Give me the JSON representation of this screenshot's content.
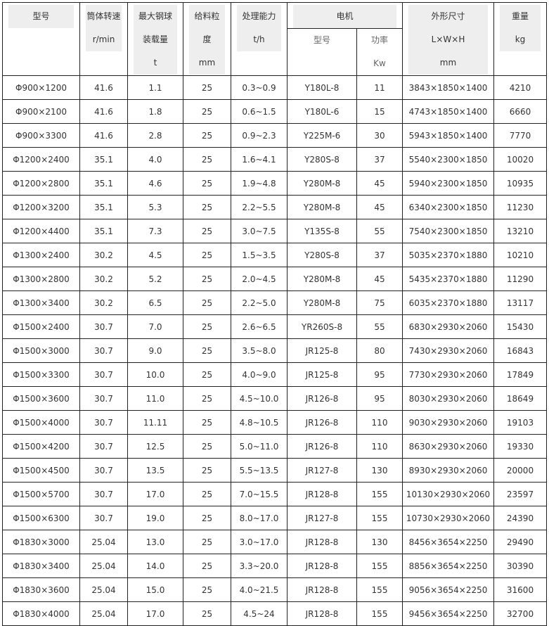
{
  "header": {
    "model": "型号",
    "speed": [
      "筒体转速",
      "r/min"
    ],
    "ball": [
      "最大钢球",
      "装载量",
      "t"
    ],
    "feed": [
      "给料粒",
      "度",
      "mm"
    ],
    "capacity": [
      "处理能力",
      "t/h"
    ],
    "motor": "电机",
    "motor_model": "型号",
    "motor_power": [
      "功率",
      "Kw"
    ],
    "dims": [
      "外形尺寸",
      "L×W×H",
      "mm"
    ],
    "weight": [
      "重量",
      "kg"
    ]
  },
  "rows": [
    [
      "Φ900×1200",
      "41.6",
      "1.1",
      "25",
      "0.3~0.9",
      "Y180L-8",
      "11",
      "3843×1850×1400",
      "4210"
    ],
    [
      "Φ900×2100",
      "41.6",
      "1.8",
      "25",
      "0.6~1.5",
      "Y180L-6",
      "15",
      "4743×1850×1400",
      "6660"
    ],
    [
      "Φ900×3300",
      "41.6",
      "2.8",
      "25",
      "0.9~2.3",
      "Y225M-6",
      "30",
      "5943×1850×1400",
      "7770"
    ],
    [
      "Φ1200×2400",
      "35.1",
      "4.0",
      "25",
      "1.6~4.1",
      "Y280S-8",
      "37",
      "5540×2300×1850",
      "10020"
    ],
    [
      "Φ1200×2800",
      "35.1",
      "4.6",
      "25",
      "1.9~4.8",
      "Y280M-8",
      "45",
      "5940×2300×1850",
      "10935"
    ],
    [
      "Φ1200×3200",
      "35.1",
      "5.3",
      "25",
      "2.2~5.5",
      "Y280M-8",
      "45",
      "6340×2300×1850",
      "11230"
    ],
    [
      "Φ1200×4400",
      "35.1",
      "7.3",
      "25",
      "3.0~7.5",
      "Y135S-8",
      "55",
      "7540×2300×1850",
      "13210"
    ],
    [
      "Φ1300×2400",
      "30.2",
      "4.5",
      "25",
      "1.5~3.5",
      "Y280S-8",
      "37",
      "5035×2370×1880",
      "10210"
    ],
    [
      "Φ1300×2800",
      "30.2",
      "5.2",
      "25",
      "2.0~4.5",
      "Y280M-8",
      "45",
      "5435×2370×1880",
      "11290"
    ],
    [
      "Φ1300×3400",
      "30.2",
      "6.5",
      "25",
      "2.2~5.0",
      "Y280M-8",
      "75",
      "6035×2370×1880",
      "13117"
    ],
    [
      "Φ1500×2400",
      "30.7",
      "7.0",
      "25",
      "2.6~6.5",
      "YR260S-8",
      "55",
      "6830×2930×2060",
      "15430"
    ],
    [
      "Φ1500×3000",
      "30.7",
      "9.0",
      "25",
      "3.5~8.0",
      "JR125-8",
      "80",
      "7430×2930×2060",
      "16843"
    ],
    [
      "Φ1500×3300",
      "30.7",
      "10.0",
      "25",
      "4.0~9.0",
      "JR125-8",
      "95",
      "7730×2930×2060",
      "17849"
    ],
    [
      "Φ1500×3600",
      "30.7",
      "11.0",
      "25",
      "4.5~10.0",
      "JR126-8",
      "95",
      "8030×2930×2060",
      "18649"
    ],
    [
      "Φ1500×4000",
      "30.7",
      "11.11",
      "25",
      "4.8~10.5",
      "JR126-8",
      "110",
      "9030×2930×2060",
      "19103"
    ],
    [
      "Φ1500×4200",
      "30.7",
      "12.5",
      "25",
      "5.0~11.0",
      "JR126-8",
      "110",
      "8630×2930×2060",
      "19330"
    ],
    [
      "Φ1500×4500",
      "30.7",
      "13.5",
      "25",
      "5.5~13.5",
      "JR127-8",
      "130",
      "8930×2930×2060",
      "20000"
    ],
    [
      "Φ1500×5700",
      "30.7",
      "17.0",
      "25",
      "7.0~15.5",
      "JR128-8",
      "155",
      "10130×2930×2060",
      "23597"
    ],
    [
      "Φ1500×6300",
      "30.7",
      "19.0",
      "25",
      "8.0~17.0",
      "JR127-8",
      "155",
      "10730×2930×2060",
      "24390"
    ],
    [
      "Φ1830×3000",
      "25.04",
      "13.0",
      "25",
      "3.0~17.0",
      "JR128-8",
      "130",
      "8456×3654×2250",
      "29490"
    ],
    [
      "Φ1830×3400",
      "25.04",
      "14.0",
      "25",
      "3.3~20.0",
      "JR128-8",
      "155",
      "8856×3654×2250",
      "30390"
    ],
    [
      "Φ1830×3600",
      "25.04",
      "15.0",
      "25",
      "4.0~21.5",
      "JR128-8",
      "155",
      "9056×3654×2250",
      "31600"
    ],
    [
      "Φ1830×4000",
      "25.04",
      "17.0",
      "25",
      "4.5~24",
      "JR128-8",
      "155",
      "9456×3654×2250",
      "32700"
    ]
  ]
}
